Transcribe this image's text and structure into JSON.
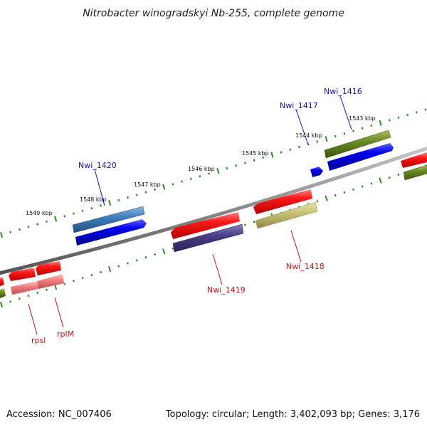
{
  "title": "Nitrobacter winogradskyi Nb-255, complete genome",
  "footer": {
    "accession": "Accession: NC_007406",
    "summary": "Topology: circular; Length: 3,402,093 bp; Genes: 3,176"
  },
  "kbp_ticks": [
    "1543 kbp",
    "1544 kbp",
    "1545 kbp",
    "1546 kbp",
    "1547 kbp",
    "1548 kbp",
    "1549 kbp"
  ],
  "gene_labels": {
    "nwi_1416": "Nwi_1416",
    "nwi_1417": "Nwi_1417",
    "nwi_1420": "Nwi_1420",
    "nwi_1418": "Nwi_1418",
    "nwi_1419": "Nwi_1419",
    "rpsl": "rpsl",
    "rplm": "rplM"
  },
  "colors": {
    "backbone": "#888888",
    "tick_green": "#2a8a2a",
    "gene_red": "#ee1111",
    "gene_blue": "#0000ee",
    "gene_steelblue": "#3f7fbf",
    "gene_olive": "#6a8a22",
    "gene_khaki": "#c8c478",
    "gene_navy": "#4a3f8a",
    "gene_pink": "#f08080",
    "label_blue": "#1010c0",
    "label_red": "#cc1010"
  }
}
